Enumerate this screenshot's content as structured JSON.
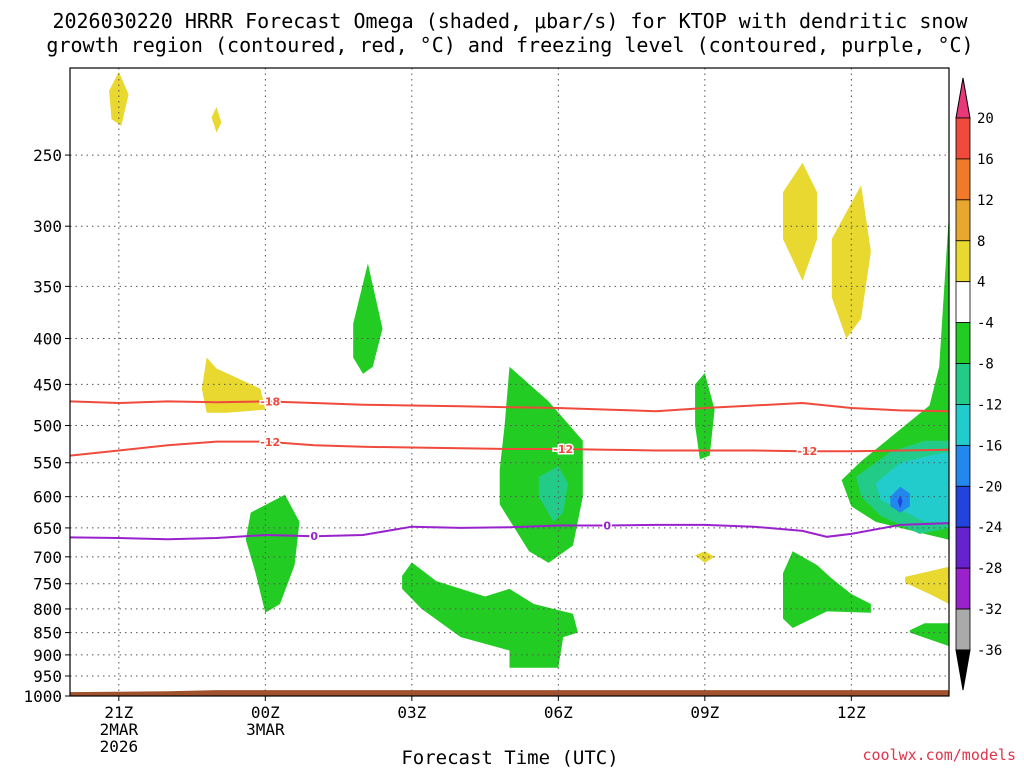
{
  "title": {
    "line1": "2026030220 HRRR Forecast Omega (shaded, μbar/s) for KTOP with dendritic snow",
    "line2": "growth region (contoured, red, °C) and freezing level (contoured, purple, °C)"
  },
  "xlabel": "Forecast Time (UTC)",
  "credit": "coolwx.com/models",
  "chart_data": {
    "type": "heatmap",
    "title": "2026030220 HRRR Forecast Omega (shaded, μbar/s) for KTOP with dendritic snow growth region (contoured, red, °C) and freezing level (contoured, purple, °C)",
    "xlabel": "Forecast Time (UTC)",
    "ylabel": "",
    "x_unit": "hours since 2026-03-02 20Z",
    "xlim": [
      20,
      38
    ],
    "y_unit": "hPa",
    "ylim": [
      1000,
      200
    ],
    "y_scale": "log-pressure",
    "grid": true,
    "x_ticks": [
      {
        "x": 21,
        "lines": [
          "21Z",
          "2MAR",
          "2026"
        ]
      },
      {
        "x": 24,
        "lines": [
          "00Z",
          "3MAR"
        ]
      },
      {
        "x": 27,
        "lines": [
          "03Z"
        ]
      },
      {
        "x": 30,
        "lines": [
          "06Z"
        ]
      },
      {
        "x": 33,
        "lines": [
          "09Z"
        ]
      },
      {
        "x": 36,
        "lines": [
          "12Z"
        ]
      }
    ],
    "y_ticks": [
      250,
      300,
      350,
      400,
      450,
      500,
      550,
      600,
      650,
      700,
      750,
      800,
      850,
      900,
      950,
      1000
    ],
    "colorbar": {
      "labels": [
        "20",
        "16",
        "12",
        "8",
        "4",
        "-4",
        "-8",
        "-12",
        "-16",
        "-20",
        "-24",
        "-28",
        "-32",
        "-36"
      ],
      "colors": [
        "#e8387a",
        "#f04a3c",
        "#f07a2a",
        "#e8a830",
        "#e8d830",
        "#ffffff",
        "#22cc22",
        "#22cc88",
        "#22cccc",
        "#2288ee",
        "#2244dd",
        "#6622cc",
        "#9922cc",
        "#aaaaaa",
        "#000000"
      ]
    },
    "ground_color": "#a0522d",
    "fields": [
      {
        "value": 4,
        "color": "#e8d830",
        "points": [
          [
            20.8,
            212
          ],
          [
            21,
            202
          ],
          [
            21.2,
            214
          ],
          [
            21.05,
            232
          ],
          [
            20.85,
            228
          ]
        ]
      },
      {
        "value": 4,
        "color": "#e8d830",
        "points": [
          [
            22.9,
            227
          ],
          [
            23,
            221
          ],
          [
            23.1,
            230
          ],
          [
            23,
            236
          ]
        ]
      },
      {
        "value": 4,
        "color": "#e8d830",
        "points": [
          [
            22.8,
            420
          ],
          [
            23.0,
            432
          ],
          [
            23.9,
            455
          ],
          [
            24.0,
            480
          ],
          [
            23.2,
            484
          ],
          [
            22.8,
            484
          ],
          [
            22.7,
            455
          ]
        ]
      },
      {
        "value": 4,
        "color": "#e8d830",
        "points": [
          [
            34.6,
            275
          ],
          [
            35.0,
            255
          ],
          [
            35.3,
            275
          ],
          [
            35.3,
            310
          ],
          [
            35.0,
            345
          ],
          [
            34.6,
            310
          ]
        ]
      },
      {
        "value": 4,
        "color": "#e8d830",
        "points": [
          [
            35.6,
            310
          ],
          [
            36.2,
            270
          ],
          [
            36.4,
            320
          ],
          [
            36.2,
            380
          ],
          [
            35.9,
            400
          ],
          [
            35.6,
            360
          ]
        ]
      },
      {
        "value": 4,
        "color": "#e8d830",
        "points": [
          [
            32.8,
            697
          ],
          [
            33,
            690
          ],
          [
            33.2,
            700
          ],
          [
            33,
            711
          ]
        ]
      },
      {
        "value": 4,
        "color": "#e8d830",
        "points": [
          [
            37.1,
            737
          ],
          [
            38,
            718
          ],
          [
            38,
            790
          ],
          [
            37.6,
            770
          ],
          [
            37.1,
            748
          ]
        ]
      },
      {
        "value": -4,
        "color": "#22cc22",
        "points": [
          [
            25.8,
            385
          ],
          [
            26.1,
            330
          ],
          [
            26.4,
            390
          ],
          [
            26.2,
            430
          ],
          [
            26.0,
            438
          ],
          [
            25.8,
            420
          ]
        ]
      },
      {
        "value": -4,
        "color": "#22cc22",
        "points": [
          [
            23.7,
            625
          ],
          [
            24.4,
            597
          ],
          [
            24.7,
            640
          ],
          [
            24.6,
            715
          ],
          [
            24.3,
            790
          ],
          [
            24.0,
            808
          ],
          [
            23.8,
            730
          ],
          [
            23.6,
            670
          ]
        ]
      },
      {
        "value": -4,
        "color": "#22cc22",
        "points": [
          [
            29.0,
            430
          ],
          [
            29.8,
            470
          ],
          [
            30.5,
            520
          ],
          [
            30.5,
            600
          ],
          [
            30.3,
            680
          ],
          [
            29.8,
            711
          ],
          [
            29.4,
            690
          ],
          [
            28.8,
            612
          ],
          [
            28.8,
            560
          ],
          [
            28.9,
            500
          ]
        ]
      },
      {
        "value": -4,
        "color": "#22cc22",
        "points": [
          [
            32.8,
            450
          ],
          [
            33.0,
            437
          ],
          [
            33.2,
            480
          ],
          [
            33.1,
            540
          ],
          [
            32.9,
            545
          ],
          [
            32.8,
            500
          ]
        ]
      },
      {
        "value": -4,
        "color": "#22cc22",
        "points": [
          [
            26.8,
            735
          ],
          [
            27.0,
            710
          ],
          [
            27.5,
            745
          ],
          [
            28.5,
            775
          ],
          [
            29.0,
            760
          ],
          [
            29.5,
            790
          ],
          [
            30.3,
            810
          ],
          [
            30.4,
            850
          ],
          [
            30.1,
            860
          ],
          [
            30.0,
            930
          ],
          [
            29.0,
            930
          ],
          [
            29.0,
            890
          ],
          [
            28.0,
            860
          ],
          [
            27.2,
            800
          ],
          [
            26.8,
            760
          ]
        ]
      },
      {
        "value": -4,
        "color": "#22cc22",
        "points": [
          [
            34.6,
            730
          ],
          [
            34.8,
            690
          ],
          [
            35.3,
            715
          ],
          [
            35.6,
            740
          ],
          [
            36.0,
            770
          ],
          [
            36.4,
            790
          ],
          [
            36.4,
            808
          ],
          [
            35.5,
            805
          ],
          [
            35.0,
            830
          ],
          [
            34.8,
            840
          ],
          [
            34.6,
            820
          ]
        ]
      },
      {
        "value": -4,
        "color": "#22cc22",
        "points": [
          [
            37.2,
            845
          ],
          [
            37.5,
            830
          ],
          [
            38,
            830
          ],
          [
            38,
            880
          ],
          [
            37.6,
            865
          ],
          [
            37.2,
            850
          ]
        ]
      },
      {
        "value": -4,
        "color": "#22cc22",
        "points": [
          [
            35.8,
            575
          ],
          [
            36.2,
            548
          ],
          [
            37.0,
            505
          ],
          [
            37.6,
            475
          ],
          [
            37.8,
            430
          ],
          [
            38,
            290
          ],
          [
            38,
            670
          ],
          [
            37.5,
            660
          ],
          [
            37.0,
            650
          ],
          [
            36.5,
            640
          ],
          [
            36.0,
            615
          ]
        ]
      },
      {
        "value": -8,
        "color": "#22cc88",
        "points": [
          [
            29.6,
            570
          ],
          [
            30.0,
            555
          ],
          [
            30.2,
            580
          ],
          [
            30.1,
            625
          ],
          [
            29.9,
            640
          ],
          [
            29.6,
            600
          ]
        ]
      },
      {
        "value": -8,
        "color": "#22cc88",
        "points": [
          [
            36.1,
            570
          ],
          [
            36.8,
            535
          ],
          [
            37.5,
            520
          ],
          [
            38,
            520
          ],
          [
            38,
            650
          ],
          [
            37.4,
            660
          ],
          [
            36.6,
            630
          ],
          [
            36.2,
            600
          ]
        ]
      },
      {
        "value": -12,
        "color": "#22cccc",
        "points": [
          [
            36.5,
            580
          ],
          [
            37.0,
            550
          ],
          [
            37.6,
            540
          ],
          [
            38,
            535
          ],
          [
            38,
            640
          ],
          [
            37.5,
            640
          ],
          [
            37.0,
            620
          ],
          [
            36.6,
            605
          ]
        ]
      },
      {
        "value": -16,
        "color": "#2288ee",
        "points": [
          [
            36.8,
            600
          ],
          [
            37.0,
            585
          ],
          [
            37.2,
            595
          ],
          [
            37.2,
            615
          ],
          [
            37.0,
            625
          ],
          [
            36.8,
            615
          ]
        ]
      },
      {
        "value": -20,
        "color": "#2244dd",
        "points": [
          [
            36.95,
            607
          ],
          [
            37.0,
            598
          ],
          [
            37.05,
            607
          ],
          [
            37.0,
            618
          ]
        ]
      }
    ],
    "dgz_contours": [
      {
        "label": "-18",
        "color": "#f04a3c",
        "x": [
          20,
          21,
          22,
          23,
          24,
          25,
          26,
          27,
          28,
          29,
          30,
          31,
          32,
          33,
          34,
          35,
          36,
          37,
          38
        ],
        "y": [
          470,
          472,
          470,
          471,
          470,
          472,
          474,
          475,
          476,
          477,
          478,
          480,
          482,
          478,
          475,
          472,
          478,
          481,
          482
        ],
        "label_x": 24.1
      },
      {
        "label": "-12",
        "color": "#f04a3c",
        "x": [
          20,
          21,
          22,
          23,
          24,
          25,
          26,
          27,
          28,
          29,
          30,
          31,
          32,
          33,
          34,
          35,
          36,
          37,
          38
        ],
        "y": [
          540,
          533,
          526,
          521,
          521,
          526,
          528,
          529,
          530,
          531,
          531,
          532,
          533,
          533,
          533,
          534,
          534,
          533,
          532
        ],
        "label_x": 24.1
      },
      {
        "label": "-12",
        "color": "#f04a3c",
        "x": [
          20,
          38
        ],
        "y": [
          0,
          0
        ],
        "label_x": 30.1,
        "label_y": 531,
        "label_only": true
      },
      {
        "label": "-12",
        "color": "#f04a3c",
        "x": [
          20,
          38
        ],
        "y": [
          0,
          0
        ],
        "label_x": 35.1,
        "label_y": 534,
        "label_only": true
      }
    ],
    "freezing_level": {
      "label": "0",
      "color": "#9922cc",
      "x": [
        20,
        21,
        22,
        23,
        24,
        25,
        26,
        27,
        28,
        29,
        30,
        31,
        32,
        33,
        34,
        35,
        35.5,
        36,
        37,
        38
      ],
      "y": [
        666,
        667,
        669,
        667,
        662,
        664,
        662,
        648,
        650,
        649,
        646,
        646,
        645,
        645,
        648,
        655,
        665,
        660,
        645,
        642
      ],
      "label_x": 25.0,
      "label2_x": 31.0
    }
  }
}
